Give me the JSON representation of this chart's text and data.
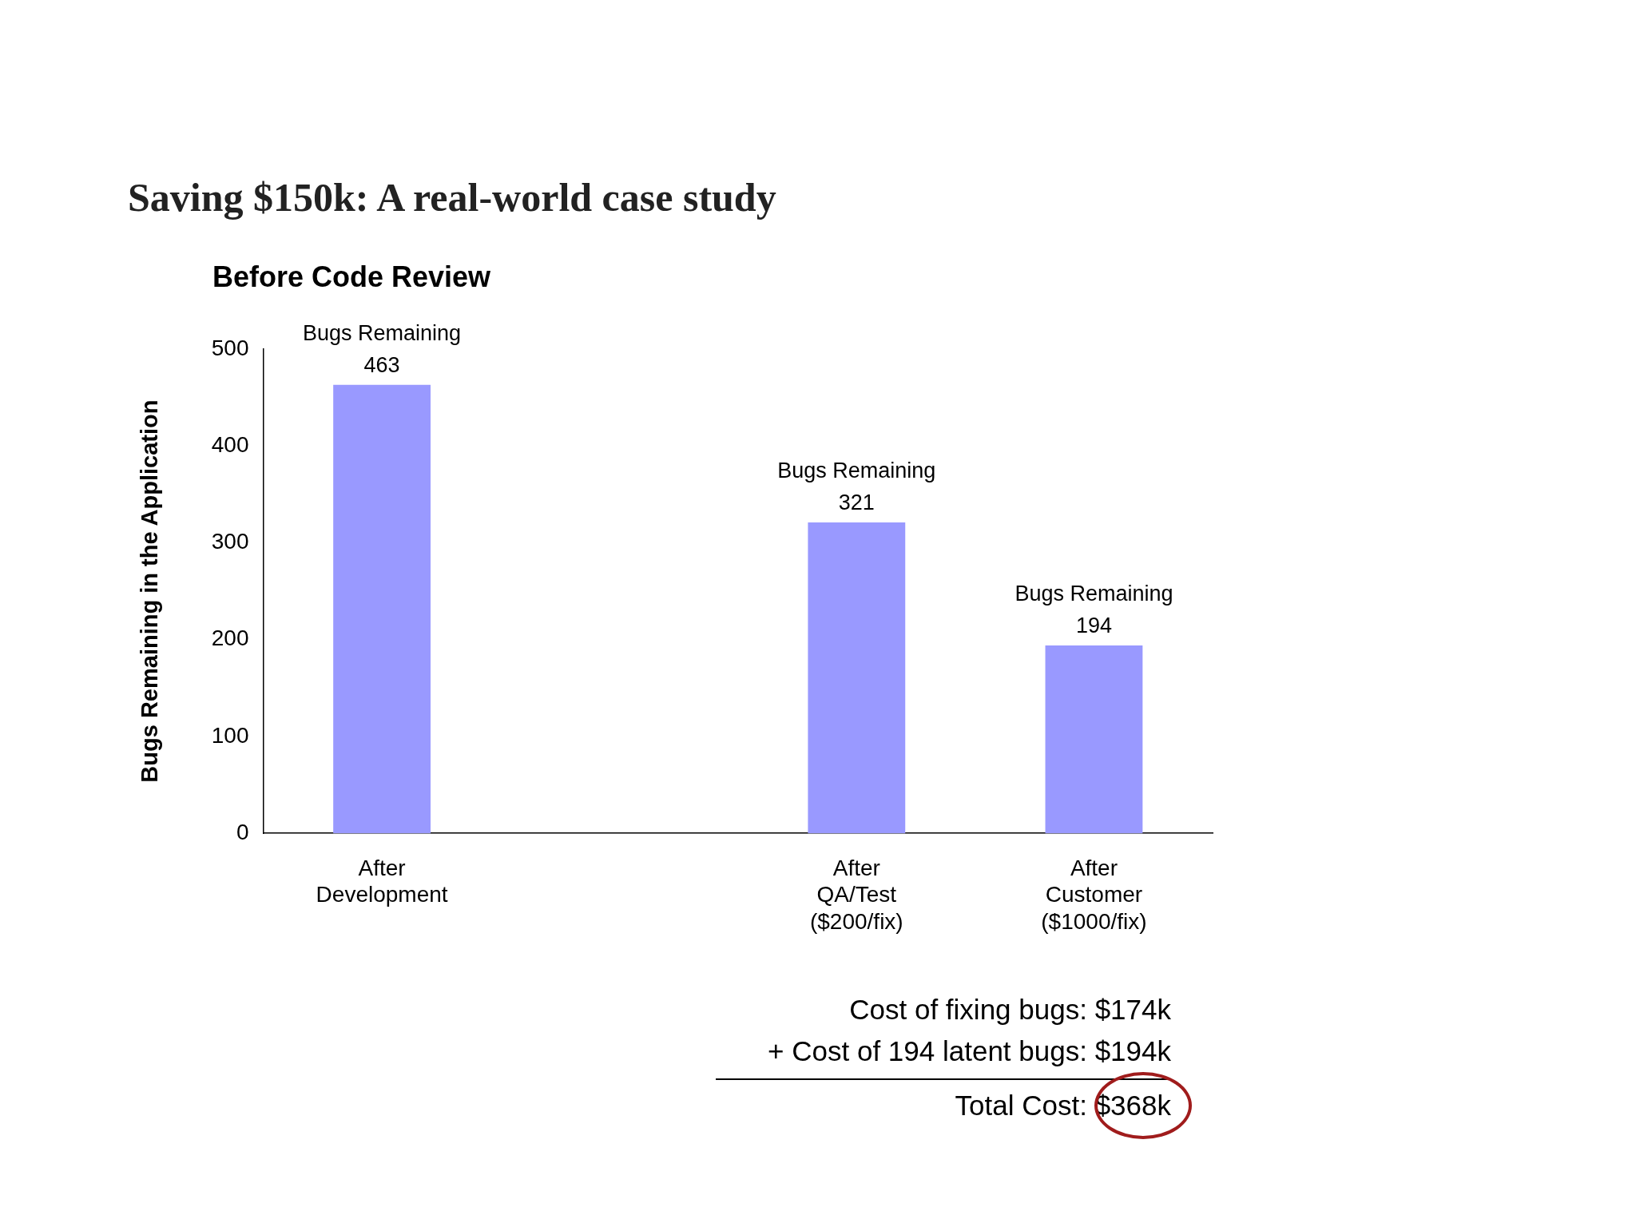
{
  "chart_data": {
    "type": "bar",
    "title": "Saving $150k: A real-world case study",
    "subtitle": "Before Code Review",
    "ylabel": "Bugs Remaining in the Application",
    "categories": [
      "After\nDevelopment",
      null,
      "After\nQA/Test\n($200/fix)",
      "After\nCustomer\n($1000/fix)"
    ],
    "values": [
      463,
      null,
      321,
      194
    ],
    "value_labels": [
      "Bugs Remaining\n463",
      null,
      "Bugs Remaining\n321",
      "Bugs Remaining\n194"
    ],
    "color": "#9999ff",
    "ylim": [
      0,
      500
    ],
    "yticks": [
      0,
      100,
      200,
      300,
      400,
      500
    ],
    "grid": false,
    "legend": false,
    "annotations": [
      "Cost of fixing bugs: $174k",
      "+ Cost of 194 latent bugs: $194k",
      "Total Cost: $368k"
    ]
  }
}
